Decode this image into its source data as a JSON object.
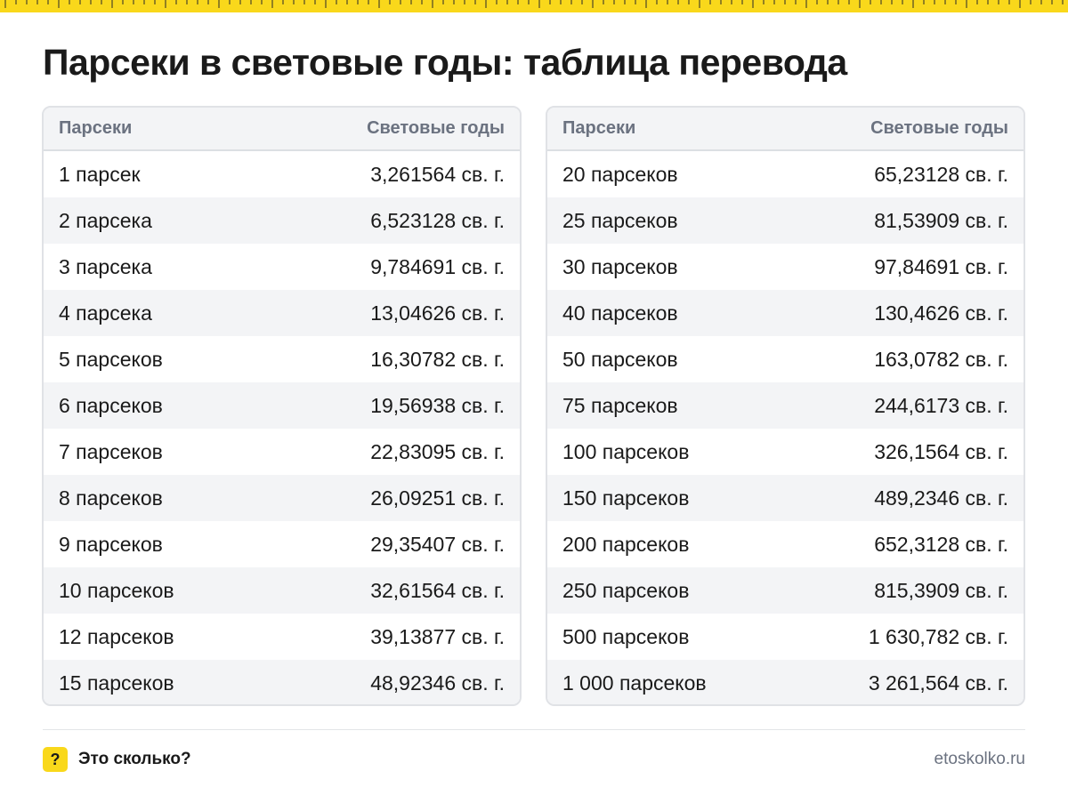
{
  "page": {
    "title": "Парсеки в световые годы: таблица перевода",
    "accent": "#f9d81b"
  },
  "tables": [
    {
      "header": {
        "col1": "Парсеки",
        "col2": "Световые годы"
      },
      "rows": [
        {
          "pc": "1 парсек",
          "ly": "3,261564 св. г."
        },
        {
          "pc": "2 парсека",
          "ly": "6,523128 св. г."
        },
        {
          "pc": "3 парсека",
          "ly": "9,784691 св. г."
        },
        {
          "pc": "4 парсека",
          "ly": "13,04626 св. г."
        },
        {
          "pc": "5 парсеков",
          "ly": "16,30782 св. г."
        },
        {
          "pc": "6 парсеков",
          "ly": "19,56938 св. г."
        },
        {
          "pc": "7 парсеков",
          "ly": "22,83095 св. г."
        },
        {
          "pc": "8 парсеков",
          "ly": "26,09251 св. г."
        },
        {
          "pc": "9 парсеков",
          "ly": "29,35407 св. г."
        },
        {
          "pc": "10 парсеков",
          "ly": "32,61564 св. г."
        },
        {
          "pc": "12 парсеков",
          "ly": "39,13877 св. г."
        },
        {
          "pc": "15 парсеков",
          "ly": "48,92346 св. г."
        }
      ]
    },
    {
      "header": {
        "col1": "Парсеки",
        "col2": "Световые годы"
      },
      "rows": [
        {
          "pc": "20 парсеков",
          "ly": "65,23128 св. г."
        },
        {
          "pc": "25 парсеков",
          "ly": "81,53909 св. г."
        },
        {
          "pc": "30 парсеков",
          "ly": "97,84691 св. г."
        },
        {
          "pc": "40 парсеков",
          "ly": "130,4626 св. г."
        },
        {
          "pc": "50 парсеков",
          "ly": "163,0782 св. г."
        },
        {
          "pc": "75 парсеков",
          "ly": "244,6173 св. г."
        },
        {
          "pc": "100 парсеков",
          "ly": "326,1564 св. г."
        },
        {
          "pc": "150 парсеков",
          "ly": "489,2346 св. г."
        },
        {
          "pc": "200 парсеков",
          "ly": "652,3128 св. г."
        },
        {
          "pc": "250 парсеков",
          "ly": "815,3909 св. г."
        },
        {
          "pc": "500 парсеков",
          "ly": "1 630,782 св. г."
        },
        {
          "pc": "1 000 парсеков",
          "ly": "3 261,564 св. г."
        }
      ]
    }
  ],
  "footer": {
    "brand_mark": "?",
    "brand_name": "Это сколько?",
    "site": "etoskolko.ru"
  }
}
